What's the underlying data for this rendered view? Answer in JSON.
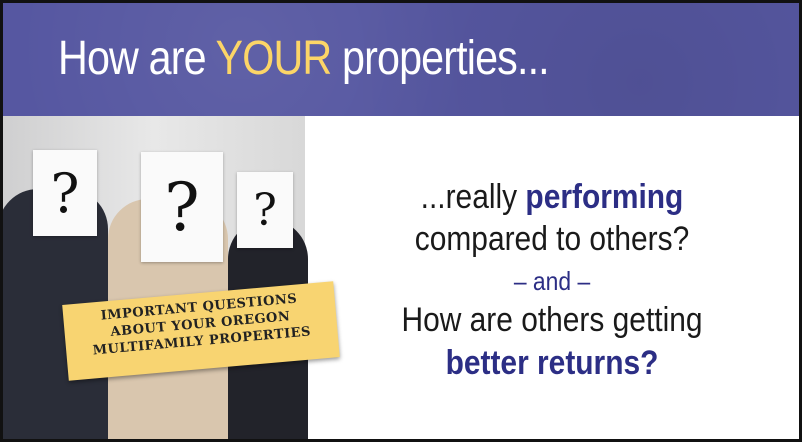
{
  "headline": {
    "pre": "How are ",
    "highlight": "YOUR",
    "post": " properties..."
  },
  "photo": {
    "cards": [
      "?",
      "?",
      "?"
    ]
  },
  "tag": {
    "lines": [
      "IMPORTANT QUESTIONS",
      "ABOUT YOUR OREGON",
      "MULTIFAMILY PROPERTIES"
    ]
  },
  "body": {
    "l1_pre": "...really ",
    "l1_bold": "performing",
    "l2": "compared to others?",
    "l3": "– and –",
    "l4": "How are others getting",
    "l5_bold": "better returns?"
  },
  "colors": {
    "banner": "#5657a1",
    "highlight": "#fcd567",
    "accent": "#2c2e85",
    "tag": "#f8d471"
  }
}
